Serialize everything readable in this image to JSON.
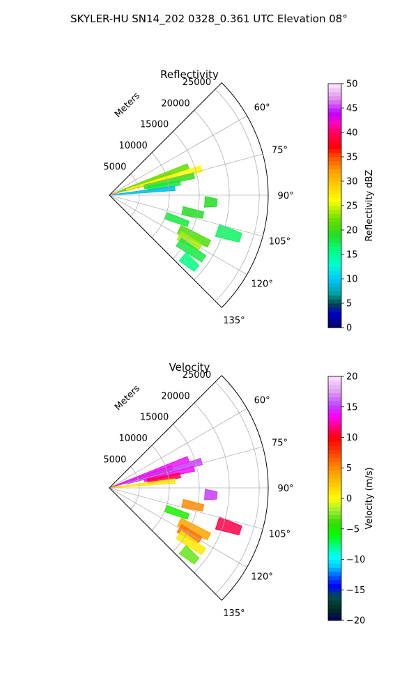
{
  "suptitle": "SKYLER-HU  SN14_202  0328_0.361 UTC Elevation 08°",
  "chart_data": [
    {
      "type": "polar-ppi",
      "title": "Reflectivity",
      "radial_label": "Meters",
      "r_ticks": [
        5000,
        10000,
        15000,
        20000,
        25000
      ],
      "r_tick_labels": [
        "5000",
        "10000",
        "15000",
        "20000",
        "25000"
      ],
      "azimuth_range_deg": [
        45,
        135
      ],
      "azimuth_ticks_deg": [
        60,
        75,
        90,
        105,
        120,
        135
      ],
      "azimuth_tick_labels": [
        "60°",
        "75°",
        "90°",
        "105°",
        "120°",
        "135°"
      ],
      "grid": true,
      "colorbar": {
        "label": "Reflectivity dBZ",
        "range": [
          0,
          50
        ],
        "ticks": [
          0,
          5,
          10,
          15,
          20,
          25,
          30,
          35,
          40,
          45,
          50
        ],
        "tick_labels": [
          "0",
          "5",
          "10",
          "15",
          "20",
          "25",
          "30",
          "35",
          "40",
          "45",
          "50"
        ]
      },
      "echo_regions": [
        {
          "az": 72,
          "r_start": 500,
          "r_end": 11000,
          "value": 32
        },
        {
          "az": 70,
          "r_start": 1500,
          "r_end": 14000,
          "value": 22
        },
        {
          "az": 74,
          "r_start": 3000,
          "r_end": 16000,
          "value": 26
        },
        {
          "az": 77,
          "r_start": 6000,
          "r_end": 14500,
          "value": 20
        },
        {
          "az": 80,
          "r_start": 6500,
          "r_end": 12000,
          "value": 18
        },
        {
          "az": 84,
          "r_start": 500,
          "r_end": 11000,
          "value": 9
        },
        {
          "az": 94,
          "r_start": 16000,
          "r_end": 18000,
          "value": 19
        },
        {
          "az": 102,
          "r_start": 12500,
          "r_end": 16000,
          "value": 19
        },
        {
          "az": 110,
          "r_start": 10000,
          "r_end": 14000,
          "value": 18
        },
        {
          "az": 116,
          "r_start": 13000,
          "r_end": 18500,
          "value": 21
        },
        {
          "az": 120,
          "r_start": 13500,
          "r_end": 17500,
          "value": 24
        },
        {
          "az": 124,
          "r_start": 14000,
          "r_end": 19000,
          "value": 18
        },
        {
          "az": 130,
          "r_start": 16000,
          "r_end": 19000,
          "value": 16
        },
        {
          "az": 108,
          "r_start": 19000,
          "r_end": 23000,
          "value": 17
        }
      ]
    },
    {
      "type": "polar-ppi",
      "title": "Velocity",
      "radial_label": "Meters",
      "r_ticks": [
        5000,
        10000,
        15000,
        20000,
        25000
      ],
      "r_tick_labels": [
        "5000",
        "10000",
        "15000",
        "20000",
        "25000"
      ],
      "azimuth_range_deg": [
        45,
        135
      ],
      "azimuth_ticks_deg": [
        60,
        75,
        90,
        105,
        120,
        135
      ],
      "azimuth_tick_labels": [
        "60°",
        "75°",
        "90°",
        "105°",
        "120°",
        "135°"
      ],
      "grid": true,
      "colorbar": {
        "label": "Velocity (m/s)",
        "range": [
          -20,
          20
        ],
        "ticks": [
          -20,
          -15,
          -10,
          -5,
          0,
          5,
          10,
          15,
          20
        ],
        "tick_labels": [
          "−20",
          "−15",
          "−10",
          "−5",
          "0",
          "5",
          "10",
          "15",
          "20"
        ]
      },
      "echo_regions": [
        {
          "az": 72,
          "r_start": 500,
          "r_end": 11000,
          "value": 10
        },
        {
          "az": 70,
          "r_start": 1500,
          "r_end": 14000,
          "value": 14
        },
        {
          "az": 74,
          "r_start": 3000,
          "r_end": 16000,
          "value": 15
        },
        {
          "az": 77,
          "r_start": 6000,
          "r_end": 14500,
          "value": 14
        },
        {
          "az": 80,
          "r_start": 6500,
          "r_end": 12000,
          "value": 11
        },
        {
          "az": 84,
          "r_start": 500,
          "r_end": 11000,
          "value": 1
        },
        {
          "az": 94,
          "r_start": 16000,
          "r_end": 18000,
          "value": 15
        },
        {
          "az": 102,
          "r_start": 12500,
          "r_end": 16000,
          "value": 5
        },
        {
          "az": 110,
          "r_start": 10000,
          "r_end": 14000,
          "value": -5
        },
        {
          "az": 116,
          "r_start": 13000,
          "r_end": 18500,
          "value": 4
        },
        {
          "az": 120,
          "r_start": 13500,
          "r_end": 17500,
          "value": 6
        },
        {
          "az": 124,
          "r_start": 14000,
          "r_end": 19000,
          "value": 1
        },
        {
          "az": 130,
          "r_start": 16000,
          "r_end": 19000,
          "value": -3
        },
        {
          "az": 108,
          "r_start": 19000,
          "r_end": 23000,
          "value": 11
        }
      ]
    }
  ]
}
